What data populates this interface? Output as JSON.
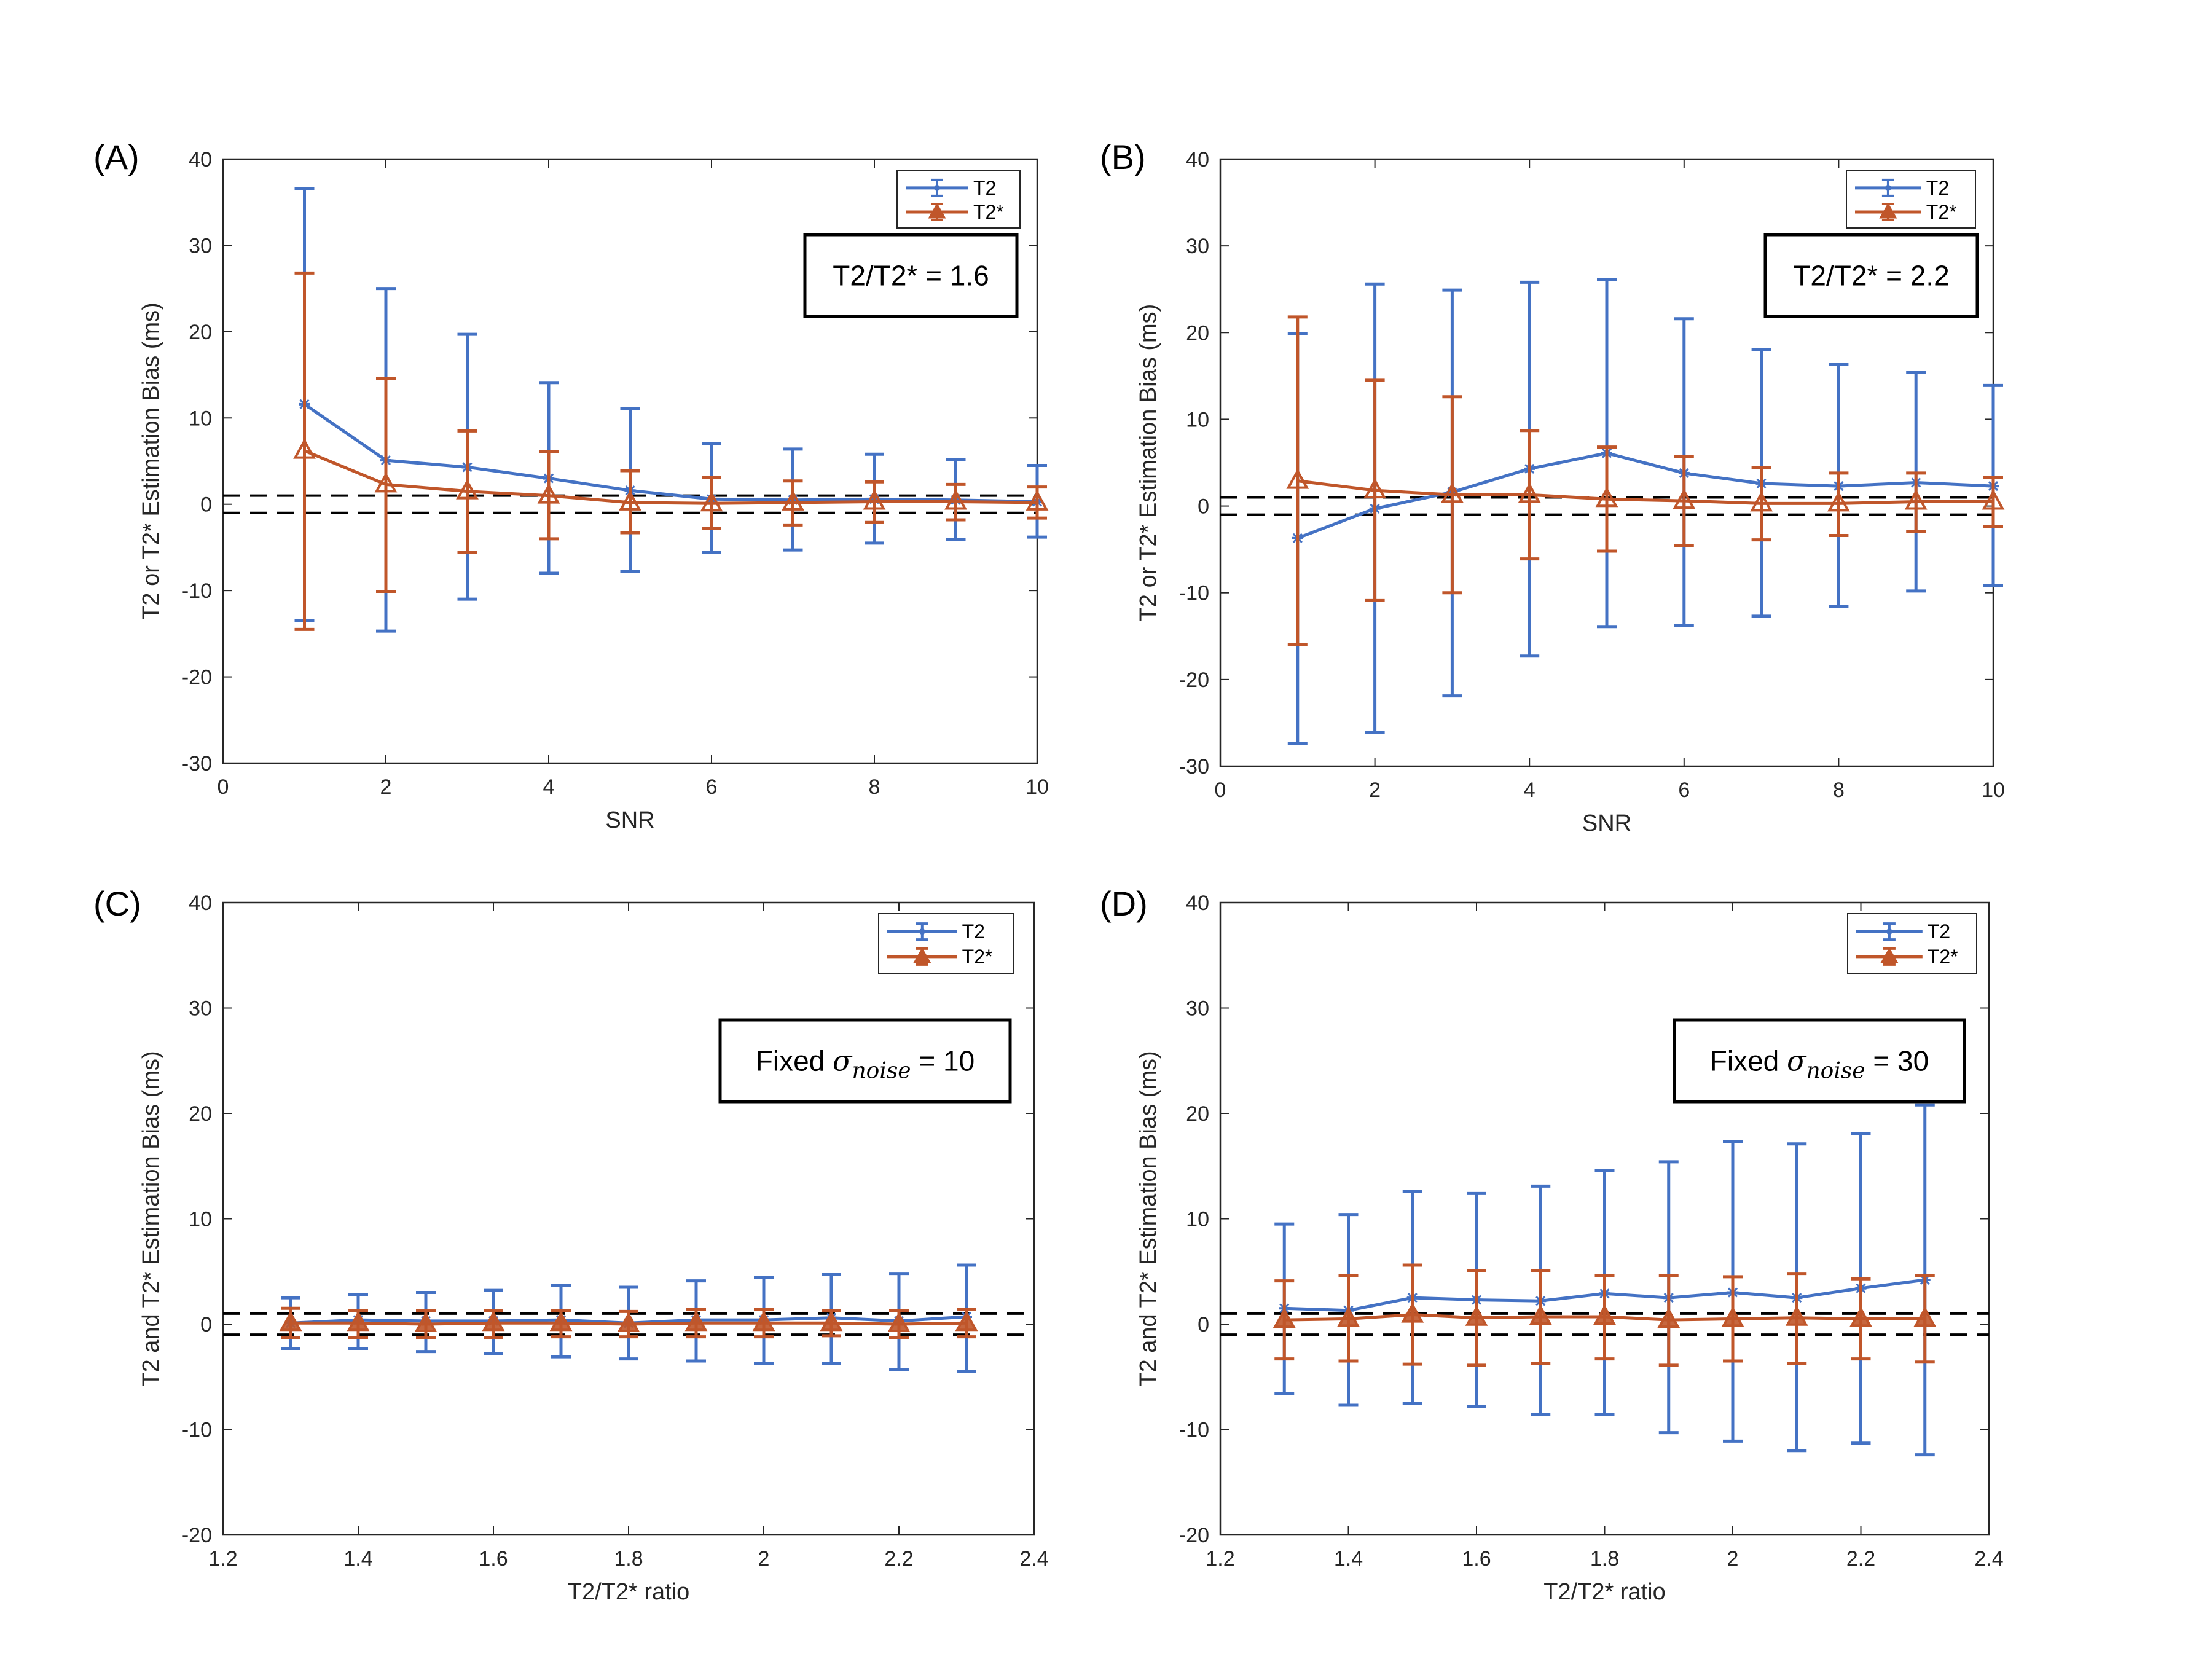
{
  "colors": {
    "t2": "#4472C4",
    "t2star": "#C0562A",
    "ref": "#000000",
    "axis": "#262626"
  },
  "legend": {
    "t2": "T2",
    "t2star": "T2*"
  },
  "chart_data": [
    {
      "panel": "(A)",
      "type": "line",
      "errorbars": true,
      "xlabel": "SNR",
      "ylabel": "T2 or T2* Estimation Bias (ms)",
      "xlim": [
        0,
        10
      ],
      "ylim": [
        -30,
        40
      ],
      "xticks": [
        0,
        2,
        4,
        6,
        8,
        10
      ],
      "xtick_labels": [
        "0",
        "2",
        "4",
        "6",
        "8",
        "10"
      ],
      "yticks": [
        -30,
        -20,
        -10,
        0,
        10,
        20,
        30,
        40
      ],
      "ytick_labels": [
        "-30",
        "-20",
        "-10",
        "0",
        "10",
        "20",
        "30",
        "40"
      ],
      "annotation": {
        "text": "T2/T2* = 1.6"
      },
      "ref_lines": [
        1,
        -1
      ],
      "legend_position": "top-right",
      "x": [
        1,
        2,
        3,
        4,
        5,
        6,
        7,
        8,
        9,
        10
      ],
      "series": [
        {
          "name": "T2",
          "values": [
            11.6,
            5.1,
            4.3,
            3.0,
            1.6,
            0.6,
            0.5,
            0.6,
            0.5,
            0.3
          ],
          "upper": [
            36.6,
            25.0,
            19.7,
            14.1,
            11.1,
            7.0,
            6.4,
            5.8,
            5.2,
            4.5
          ],
          "lower": [
            -13.5,
            -14.7,
            -11.0,
            -8.0,
            -7.8,
            -5.6,
            -5.3,
            -4.5,
            -4.1,
            -3.8
          ]
        },
        {
          "name": "T2*",
          "values": [
            6.2,
            2.3,
            1.5,
            1.0,
            0.2,
            0.1,
            0.2,
            0.3,
            0.3,
            0.2
          ],
          "upper": [
            26.8,
            14.6,
            8.5,
            6.1,
            3.9,
            3.1,
            2.7,
            2.6,
            2.3,
            2.0
          ],
          "lower": [
            -14.5,
            -10.1,
            -5.6,
            -4.0,
            -3.3,
            -2.8,
            -2.4,
            -2.1,
            -1.8,
            -1.6
          ]
        }
      ]
    },
    {
      "panel": "(B)",
      "type": "line",
      "errorbars": true,
      "xlabel": "SNR",
      "ylabel": "T2 or T2* Estimation Bias (ms)",
      "xlim": [
        0,
        10
      ],
      "ylim": [
        -30,
        40
      ],
      "xticks": [
        0,
        2,
        4,
        6,
        8,
        10
      ],
      "xtick_labels": [
        "0",
        "2",
        "4",
        "6",
        "8",
        "10"
      ],
      "yticks": [
        -30,
        -20,
        -10,
        0,
        10,
        20,
        30,
        40
      ],
      "ytick_labels": [
        "-30",
        "-20",
        "-10",
        "0",
        "10",
        "20",
        "30",
        "40"
      ],
      "annotation": {
        "text": "T2/T2* = 2.2"
      },
      "ref_lines": [
        1,
        -1
      ],
      "legend_position": "top-right",
      "x": [
        1,
        2,
        3,
        4,
        5,
        6,
        7,
        8,
        9,
        10
      ],
      "series": [
        {
          "name": "T2",
          "values": [
            -3.7,
            -0.3,
            1.6,
            4.3,
            6.1,
            3.8,
            2.6,
            2.3,
            2.7,
            2.3
          ],
          "upper": [
            19.9,
            25.6,
            24.9,
            25.8,
            26.1,
            21.6,
            18.0,
            16.3,
            15.4,
            13.9
          ],
          "lower": [
            -27.4,
            -26.1,
            -21.9,
            -17.3,
            -13.9,
            -13.8,
            -12.7,
            -11.6,
            -9.8,
            -9.2
          ]
        },
        {
          "name": "T2*",
          "values": [
            2.9,
            1.8,
            1.3,
            1.3,
            0.8,
            0.6,
            0.3,
            0.3,
            0.5,
            0.5
          ],
          "upper": [
            21.8,
            14.5,
            12.6,
            8.7,
            6.8,
            5.7,
            4.4,
            3.8,
            3.8,
            3.3
          ],
          "lower": [
            -16.0,
            -10.9,
            -10.0,
            -6.1,
            -5.2,
            -4.6,
            -3.9,
            -3.4,
            -2.9,
            -2.4
          ]
        }
      ]
    },
    {
      "panel": "(C)",
      "type": "line",
      "errorbars": true,
      "xlabel": "T2/T2* ratio",
      "ylabel": "T2 and T2* Estimation Bias (ms)",
      "xlim": [
        1.2,
        2.4
      ],
      "ylim": [
        -20,
        40
      ],
      "xticks": [
        1.2,
        1.4,
        1.6,
        1.8,
        2.0,
        2.2,
        2.4
      ],
      "xtick_labels": [
        "1.2",
        "1.4",
        "1.6",
        "1.8",
        "2",
        "2.2",
        "2.4"
      ],
      "yticks": [
        -20,
        -10,
        0,
        10,
        20,
        30,
        40
      ],
      "ytick_labels": [
        "-20",
        "-10",
        "0",
        "10",
        "20",
        "30",
        "40"
      ],
      "annotation": {
        "text": "Fixed ",
        "symbol": "σ",
        "subscript": "noise",
        "suffix": " = 10"
      },
      "ref_lines": [
        1,
        -1
      ],
      "legend_position": "top-right",
      "x": [
        1.3,
        1.4,
        1.5,
        1.6,
        1.7,
        1.8,
        1.9,
        2.0,
        2.1,
        2.2,
        2.3
      ],
      "series": [
        {
          "name": "T2",
          "values": [
            0.1,
            0.4,
            0.3,
            0.3,
            0.4,
            0.1,
            0.4,
            0.4,
            0.6,
            0.3,
            0.7
          ],
          "upper": [
            2.5,
            2.8,
            3.0,
            3.2,
            3.7,
            3.5,
            4.1,
            4.4,
            4.7,
            4.8,
            5.6
          ],
          "lower": [
            -2.3,
            -2.3,
            -2.6,
            -2.8,
            -3.1,
            -3.3,
            -3.5,
            -3.7,
            -3.7,
            -4.3,
            -4.5
          ]
        },
        {
          "name": "T2*",
          "values": [
            0.1,
            0.1,
            0.0,
            0.1,
            0.1,
            0.0,
            0.1,
            0.1,
            0.1,
            0.0,
            0.1
          ],
          "upper": [
            1.5,
            1.3,
            1.3,
            1.3,
            1.3,
            1.2,
            1.4,
            1.4,
            1.3,
            1.3,
            1.4
          ],
          "lower": [
            -1.3,
            -1.3,
            -1.3,
            -1.3,
            -1.2,
            -1.2,
            -1.2,
            -1.2,
            -1.1,
            -1.3,
            -1.2
          ]
        }
      ]
    },
    {
      "panel": "(D)",
      "type": "line",
      "errorbars": true,
      "xlabel": "T2/T2* ratio",
      "ylabel": "T2 and T2* Estimation Bias (ms)",
      "xlim": [
        1.2,
        2.4
      ],
      "ylim": [
        -20,
        40
      ],
      "xticks": [
        1.2,
        1.4,
        1.6,
        1.8,
        2.0,
        2.2,
        2.4
      ],
      "xtick_labels": [
        "1.2",
        "1.4",
        "1.6",
        "1.8",
        "2",
        "2.2",
        "2.4"
      ],
      "yticks": [
        -20,
        -10,
        0,
        10,
        20,
        30,
        40
      ],
      "ytick_labels": [
        "-20",
        "-10",
        "0",
        "10",
        "20",
        "30",
        "40"
      ],
      "annotation": {
        "text": "Fixed ",
        "symbol": "σ",
        "subscript": "noise",
        "suffix": " = 30"
      },
      "ref_lines": [
        1,
        -1
      ],
      "legend_position": "top-right",
      "x": [
        1.3,
        1.4,
        1.5,
        1.6,
        1.7,
        1.8,
        1.9,
        2.0,
        2.1,
        2.2,
        2.3
      ],
      "series": [
        {
          "name": "T2",
          "values": [
            1.5,
            1.3,
            2.5,
            2.3,
            2.2,
            2.9,
            2.5,
            3.0,
            2.5,
            3.4,
            4.2
          ],
          "upper": [
            9.5,
            10.4,
            12.6,
            12.4,
            13.1,
            14.6,
            15.4,
            17.3,
            17.1,
            18.1,
            20.8
          ],
          "lower": [
            -6.6,
            -7.7,
            -7.5,
            -7.8,
            -8.6,
            -8.6,
            -10.3,
            -11.1,
            -12.0,
            -11.3,
            -12.4
          ]
        },
        {
          "name": "T2*",
          "values": [
            0.4,
            0.5,
            0.9,
            0.6,
            0.7,
            0.7,
            0.4,
            0.5,
            0.6,
            0.5,
            0.5
          ],
          "upper": [
            4.1,
            4.6,
            5.6,
            5.1,
            5.1,
            4.6,
            4.6,
            4.5,
            4.8,
            4.3,
            4.6
          ],
          "lower": [
            -3.3,
            -3.5,
            -3.8,
            -3.9,
            -3.7,
            -3.3,
            -3.9,
            -3.5,
            -3.7,
            -3.3,
            -3.6
          ]
        }
      ]
    }
  ]
}
